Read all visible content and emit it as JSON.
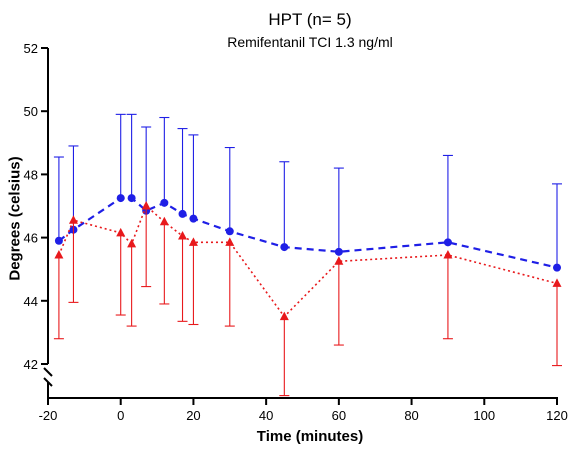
{
  "chart_data": {
    "type": "line",
    "title": "HPT (n= 5)",
    "subtitle": "Remifentanil TCI 1.3 ng/ml",
    "xlabel": "Time (minutes)",
    "ylabel": "Degrees (celsius)",
    "xlim": [
      -20,
      120
    ],
    "ylim": [
      42,
      52
    ],
    "x_ticks": [
      -20,
      0,
      20,
      40,
      60,
      80,
      100,
      120
    ],
    "y_ticks": [
      42,
      44,
      46,
      48,
      50,
      52
    ],
    "axis_break": "y-axis below 42",
    "grid": false,
    "legend": "none",
    "series": [
      {
        "color": "#1f1fe6",
        "line_style": "dashed",
        "marker": "circle",
        "error_bars": "upper",
        "points": [
          {
            "x": -17,
            "y": 45.9,
            "err_upper": 48.55
          },
          {
            "x": -13,
            "y": 46.25,
            "err_upper": 48.9
          },
          {
            "x": 0,
            "y": 47.25,
            "err_upper": 49.9
          },
          {
            "x": 3,
            "y": 47.25,
            "err_upper": 49.9
          },
          {
            "x": 7,
            "y": 46.85,
            "err_upper": 49.5
          },
          {
            "x": 12,
            "y": 47.1,
            "err_upper": 49.8
          },
          {
            "x": 17,
            "y": 46.75,
            "err_upper": 49.45
          },
          {
            "x": 20,
            "y": 46.6,
            "err_upper": 49.25
          },
          {
            "x": 30,
            "y": 46.2,
            "err_upper": 48.85
          },
          {
            "x": 45,
            "y": 45.7,
            "err_upper": 48.4
          },
          {
            "x": 60,
            "y": 45.55,
            "err_upper": 48.2
          },
          {
            "x": 90,
            "y": 45.85,
            "err_upper": 48.6
          },
          {
            "x": 120,
            "y": 45.05,
            "err_upper": 47.7
          }
        ]
      },
      {
        "color": "#e8191c",
        "line_style": "dotted",
        "marker": "triangle",
        "error_bars": "lower",
        "points": [
          {
            "x": -17,
            "y": 45.45,
            "err_lower": 42.8
          },
          {
            "x": -13,
            "y": 46.55,
            "err_lower": 43.95
          },
          {
            "x": 0,
            "y": 46.15,
            "err_lower": 43.55
          },
          {
            "x": 3,
            "y": 45.8,
            "err_lower": 43.2
          },
          {
            "x": 7,
            "y": 47.0,
            "err_lower": 44.45
          },
          {
            "x": 12,
            "y": 46.5,
            "err_lower": 43.9
          },
          {
            "x": 17,
            "y": 46.05,
            "err_lower": 43.35
          },
          {
            "x": 20,
            "y": 45.85,
            "err_lower": 43.25
          },
          {
            "x": 30,
            "y": 45.85,
            "err_lower": 43.2
          },
          {
            "x": 45,
            "y": 43.5,
            "err_lower": 41.0
          },
          {
            "x": 60,
            "y": 45.25,
            "err_lower": 42.6
          },
          {
            "x": 90,
            "y": 45.45,
            "err_lower": 42.8
          },
          {
            "x": 120,
            "y": 44.55,
            "err_lower": 41.95
          }
        ]
      }
    ]
  }
}
